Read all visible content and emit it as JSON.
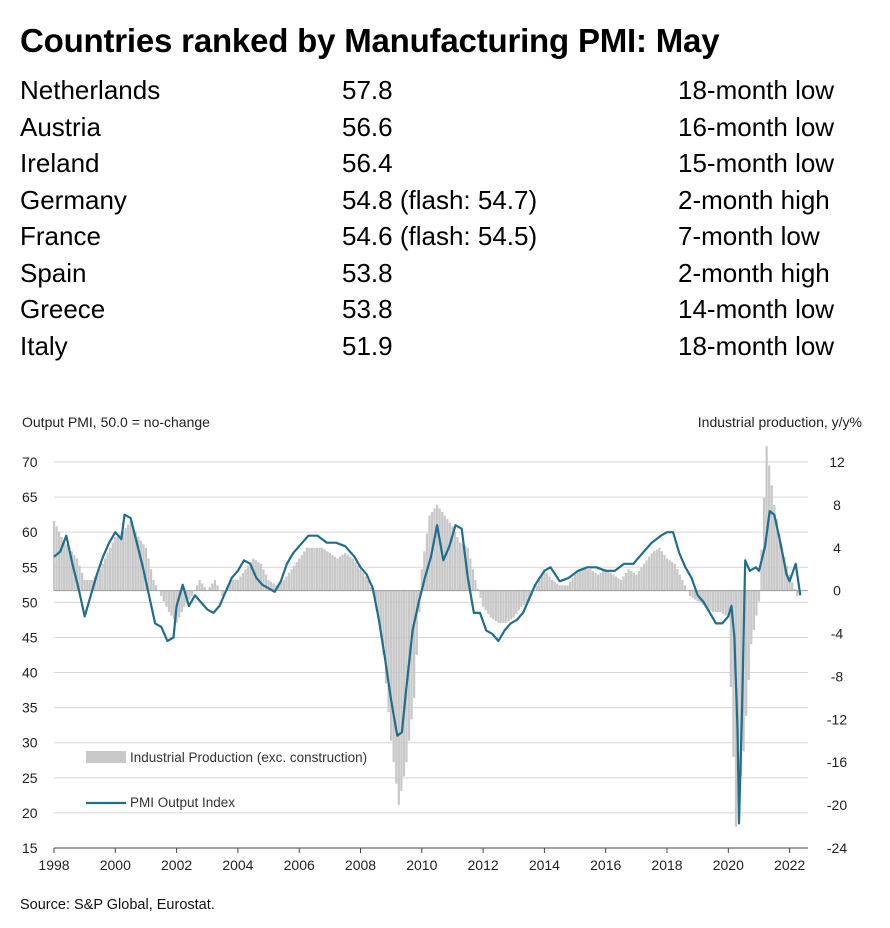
{
  "title": "Countries ranked by Manufacturing PMI: May",
  "ranking": [
    {
      "country": "Netherlands",
      "value": "57.8",
      "note": "18-month low"
    },
    {
      "country": "Austria",
      "value": "56.6",
      "note": "16-month low"
    },
    {
      "country": "Ireland",
      "value": "56.4",
      "note": "15-month low"
    },
    {
      "country": "Germany",
      "value": "54.8 (flash: 54.7)",
      "note": "2-month high"
    },
    {
      "country": "France",
      "value": "54.6 (flash: 54.5)",
      "note": "7-month low"
    },
    {
      "country": "Spain",
      "value": "53.8",
      "note": "2-month high"
    },
    {
      "country": "Greece",
      "value": "53.8",
      "note": "14-month low"
    },
    {
      "country": "Italy",
      "value": "51.9",
      "note": "18-month low"
    }
  ],
  "source": "Source: S&P Global, Eurostat.",
  "chart_data": {
    "type": "line",
    "title": "",
    "left_axis_label": "Output PMI, 50.0 = no-change",
    "right_axis_label": "Industrial production, y/y%",
    "left_ylim": [
      15,
      70
    ],
    "left_yticks": [
      15,
      20,
      25,
      30,
      35,
      40,
      45,
      50,
      55,
      60,
      65,
      70
    ],
    "right_ylim": [
      -24,
      12
    ],
    "right_yticks": [
      -24,
      -20,
      -16,
      -12,
      -8,
      -4,
      0,
      4,
      8,
      12
    ],
    "xlim": [
      1998,
      2022.6
    ],
    "xticks": [
      1998,
      2000,
      2002,
      2004,
      2006,
      2008,
      2010,
      2012,
      2014,
      2016,
      2018,
      2020,
      2022
    ],
    "grid": true,
    "colors": {
      "pmi_line": "#1f6e8c",
      "ip_bars": "#c8c8c8",
      "grid": "#d6d6d6"
    },
    "series": [
      {
        "name": "PMI Output Index",
        "axis": "left",
        "x": [
          1998.0,
          1998.2,
          1998.4,
          1998.6,
          1998.8,
          1999.0,
          1999.2,
          1999.4,
          1999.6,
          1999.8,
          2000.0,
          2000.2,
          2000.3,
          2000.5,
          2000.7,
          2000.9,
          2001.1,
          2001.3,
          2001.5,
          2001.7,
          2001.9,
          2002.0,
          2002.2,
          2002.4,
          2002.6,
          2002.8,
          2003.0,
          2003.2,
          2003.4,
          2003.6,
          2003.8,
          2004.0,
          2004.2,
          2004.4,
          2004.6,
          2004.8,
          2005.0,
          2005.2,
          2005.4,
          2005.6,
          2005.8,
          2006.0,
          2006.3,
          2006.6,
          2006.9,
          2007.2,
          2007.5,
          2007.8,
          2008.0,
          2008.2,
          2008.4,
          2008.6,
          2008.8,
          2009.0,
          2009.1,
          2009.2,
          2009.35,
          2009.5,
          2009.7,
          2009.9,
          2010.1,
          2010.3,
          2010.5,
          2010.7,
          2010.9,
          2011.1,
          2011.3,
          2011.5,
          2011.7,
          2011.9,
          2012.1,
          2012.3,
          2012.5,
          2012.7,
          2012.9,
          2013.1,
          2013.3,
          2013.5,
          2013.7,
          2014.0,
          2014.2,
          2014.5,
          2014.8,
          2015.1,
          2015.4,
          2015.7,
          2016.0,
          2016.3,
          2016.6,
          2016.9,
          2017.2,
          2017.5,
          2017.8,
          2018.0,
          2018.2,
          2018.4,
          2018.6,
          2018.8,
          2019.0,
          2019.2,
          2019.4,
          2019.6,
          2019.8,
          2020.0,
          2020.1,
          2020.2,
          2020.3,
          2020.35,
          2020.45,
          2020.55,
          2020.7,
          2020.9,
          2021.0,
          2021.2,
          2021.35,
          2021.5,
          2021.7,
          2021.9,
          2022.0,
          2022.2,
          2022.35
        ],
        "values": [
          56.5,
          57.2,
          59.5,
          55.5,
          52.0,
          48.0,
          51.0,
          54.0,
          56.5,
          58.5,
          60.0,
          59.0,
          62.5,
          62.0,
          58.5,
          55.0,
          51.0,
          47.0,
          46.5,
          44.5,
          45.0,
          49.5,
          52.5,
          49.5,
          51.0,
          50.0,
          49.0,
          48.5,
          49.5,
          51.5,
          53.5,
          54.5,
          56.0,
          55.5,
          53.5,
          52.5,
          52.0,
          51.5,
          53.0,
          55.5,
          57.0,
          58.0,
          59.5,
          59.5,
          58.5,
          58.5,
          58.0,
          56.5,
          55.0,
          54.0,
          52.0,
          47.5,
          42.0,
          36.0,
          33.5,
          31.0,
          31.5,
          38.0,
          46.0,
          50.0,
          53.5,
          56.5,
          61.0,
          56.0,
          58.0,
          61.0,
          60.5,
          53.5,
          48.5,
          48.5,
          46.0,
          45.5,
          44.5,
          46.0,
          47.0,
          47.5,
          48.5,
          50.5,
          52.5,
          54.5,
          55.0,
          53.0,
          53.5,
          54.5,
          55.0,
          55.0,
          54.5,
          54.5,
          55.5,
          55.5,
          57.0,
          58.5,
          59.5,
          60.0,
          60.0,
          57.0,
          55.0,
          53.5,
          51.0,
          50.0,
          48.5,
          47.0,
          47.0,
          48.0,
          49.5,
          45.0,
          32.0,
          18.5,
          35.0,
          56.0,
          54.5,
          55.0,
          54.5,
          58.0,
          63.0,
          62.5,
          58.5,
          54.0,
          53.0,
          55.5,
          51.0
        ],
        "color": "#1f6e8c"
      },
      {
        "name": "Industrial Production (exc. construction)",
        "axis": "right",
        "x": [
          1998.0,
          1998.25,
          1998.5,
          1998.75,
          1999.0,
          1999.25,
          1999.5,
          1999.75,
          2000.0,
          2000.25,
          2000.5,
          2000.75,
          2001.0,
          2001.25,
          2001.5,
          2001.75,
          2002.0,
          2002.25,
          2002.5,
          2002.75,
          2003.0,
          2003.25,
          2003.5,
          2003.75,
          2004.0,
          2004.25,
          2004.5,
          2004.75,
          2005.0,
          2005.25,
          2005.5,
          2005.75,
          2006.0,
          2006.25,
          2006.5,
          2006.75,
          2007.0,
          2007.25,
          2007.5,
          2007.75,
          2008.0,
          2008.25,
          2008.5,
          2008.75,
          2009.0,
          2009.25,
          2009.5,
          2009.75,
          2010.0,
          2010.25,
          2010.5,
          2010.75,
          2011.0,
          2011.25,
          2011.5,
          2011.75,
          2012.0,
          2012.25,
          2012.5,
          2012.75,
          2013.0,
          2013.25,
          2013.5,
          2013.75,
          2014.0,
          2014.25,
          2014.5,
          2014.75,
          2015.0,
          2015.25,
          2015.5,
          2015.75,
          2016.0,
          2016.25,
          2016.5,
          2016.75,
          2017.0,
          2017.25,
          2017.5,
          2017.75,
          2018.0,
          2018.25,
          2018.5,
          2018.75,
          2019.0,
          2019.25,
          2019.5,
          2019.75,
          2020.0,
          2020.25,
          2020.5,
          2020.75,
          2021.0,
          2021.25,
          2021.5,
          2021.75,
          2022.0,
          2022.25
        ],
        "values": [
          6.5,
          5.0,
          4.0,
          3.0,
          1.0,
          1.0,
          2.0,
          3.5,
          5.0,
          5.5,
          6.5,
          5.0,
          4.0,
          1.0,
          -0.5,
          -2.0,
          -3.0,
          -1.5,
          -0.5,
          1.0,
          0.0,
          1.0,
          -0.5,
          1.0,
          1.0,
          2.0,
          3.0,
          2.5,
          1.0,
          0.5,
          1.0,
          2.0,
          3.0,
          4.0,
          4.0,
          4.0,
          3.5,
          3.0,
          3.5,
          3.0,
          2.0,
          1.0,
          -1.0,
          -6.0,
          -14.0,
          -20.0,
          -16.0,
          -10.0,
          2.0,
          7.0,
          8.0,
          7.0,
          6.0,
          4.5,
          4.0,
          1.0,
          -1.5,
          -2.5,
          -3.0,
          -3.0,
          -2.5,
          -1.5,
          -1.0,
          0.5,
          2.0,
          1.0,
          0.5,
          0.5,
          1.5,
          2.0,
          2.0,
          1.5,
          2.0,
          1.5,
          1.0,
          2.0,
          1.5,
          2.5,
          3.5,
          4.0,
          3.0,
          2.5,
          1.0,
          -0.5,
          -1.0,
          -1.5,
          -2.0,
          -2.0,
          -2.5,
          -22.0,
          -15.0,
          -5.0,
          -1.0,
          13.5,
          8.0,
          4.0,
          1.5,
          -0.5
        ],
        "color": "#c8c8c8"
      }
    ]
  }
}
